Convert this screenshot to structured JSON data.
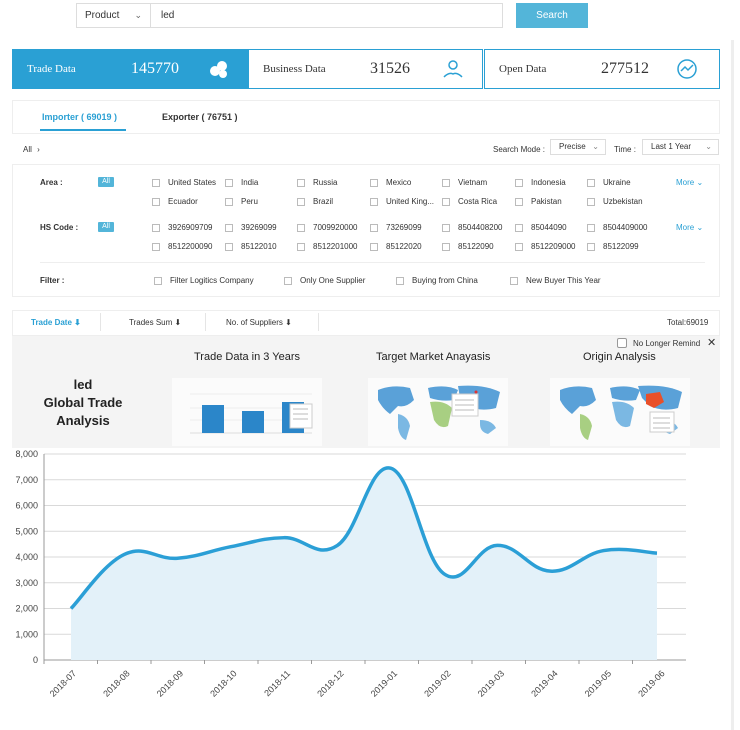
{
  "search": {
    "type_value": "Product",
    "query": "led",
    "button_label": "Search"
  },
  "stats": [
    {
      "label": "Trade Data",
      "value": "145770",
      "icon": "data-cluster-icon"
    },
    {
      "label": "Business Data",
      "value": "31526",
      "icon": "user-hand-icon"
    },
    {
      "label": "Open Data",
      "value": "277512",
      "icon": "globe-chart-icon"
    }
  ],
  "tabs": {
    "importer": "Importer ( 69019 )",
    "exporter": "Exporter ( 76751 )"
  },
  "breadcrumb": "All",
  "search_mode": {
    "label": "Search Mode :",
    "value": "Precise"
  },
  "time": {
    "label": "Time :",
    "value": "Last 1 Year"
  },
  "filters": {
    "area_label": "Area :",
    "hs_label": "HS Code :",
    "filter_label": "Filter :",
    "all_label": "All",
    "more_label": "More",
    "areas": [
      "United States",
      "India",
      "Russia",
      "Mexico",
      "Vietnam",
      "Indonesia",
      "Ukraine",
      "Ecuador",
      "Peru",
      "Brazil",
      "United King...",
      "Costa Rica",
      "Pakistan",
      "Uzbekistan"
    ],
    "hs_codes": [
      "3926909709",
      "39269099",
      "7009920000",
      "73269099",
      "8504408200",
      "85044090",
      "8504409000",
      "8512200090",
      "85122010",
      "8512201000",
      "85122020",
      "85122090",
      "8512209000",
      "85122099"
    ],
    "extra": [
      "Filter Logitics Company",
      "Only One Supplier",
      "Buying from China",
      "New Buyer This Year"
    ]
  },
  "sort": {
    "trade_date": "Trade Date",
    "trades_sum": "Trades Sum",
    "suppliers": "No. of Suppliers",
    "total": "Total:69019"
  },
  "analysis": {
    "title_line1": "led",
    "title_line2": "Global Trade",
    "title_line3": "Analysis",
    "card1": "Trade Data in 3 Years",
    "card2": "Target Market Anayasis",
    "card3": "Origin Analysis",
    "no_remind": "No Longer Remind"
  },
  "colors": {
    "accent": "#2aa0d4",
    "button": "#53b5d9",
    "line": "#2b9fd6",
    "area_fill": "#e3f1f9"
  },
  "chart_data": {
    "type": "area",
    "categories": [
      "2018-07",
      "2018-08",
      "2018-09",
      "2018-10",
      "2018-11",
      "2018-12",
      "2019-01",
      "2019-02",
      "2019-03",
      "2019-04",
      "2019-05",
      "2019-06"
    ],
    "series": [
      {
        "values": [
          2000,
          4100,
          3950,
          4400,
          4750,
          4450,
          7450,
          3350,
          4450,
          3450,
          4250,
          4150
        ]
      }
    ],
    "ylim": [
      0,
      8000
    ],
    "yticks": [
      "0",
      "1,000",
      "2,000",
      "3,000",
      "4,000",
      "5,000",
      "6,000",
      "7,000",
      "8,000"
    ],
    "grid": true
  }
}
